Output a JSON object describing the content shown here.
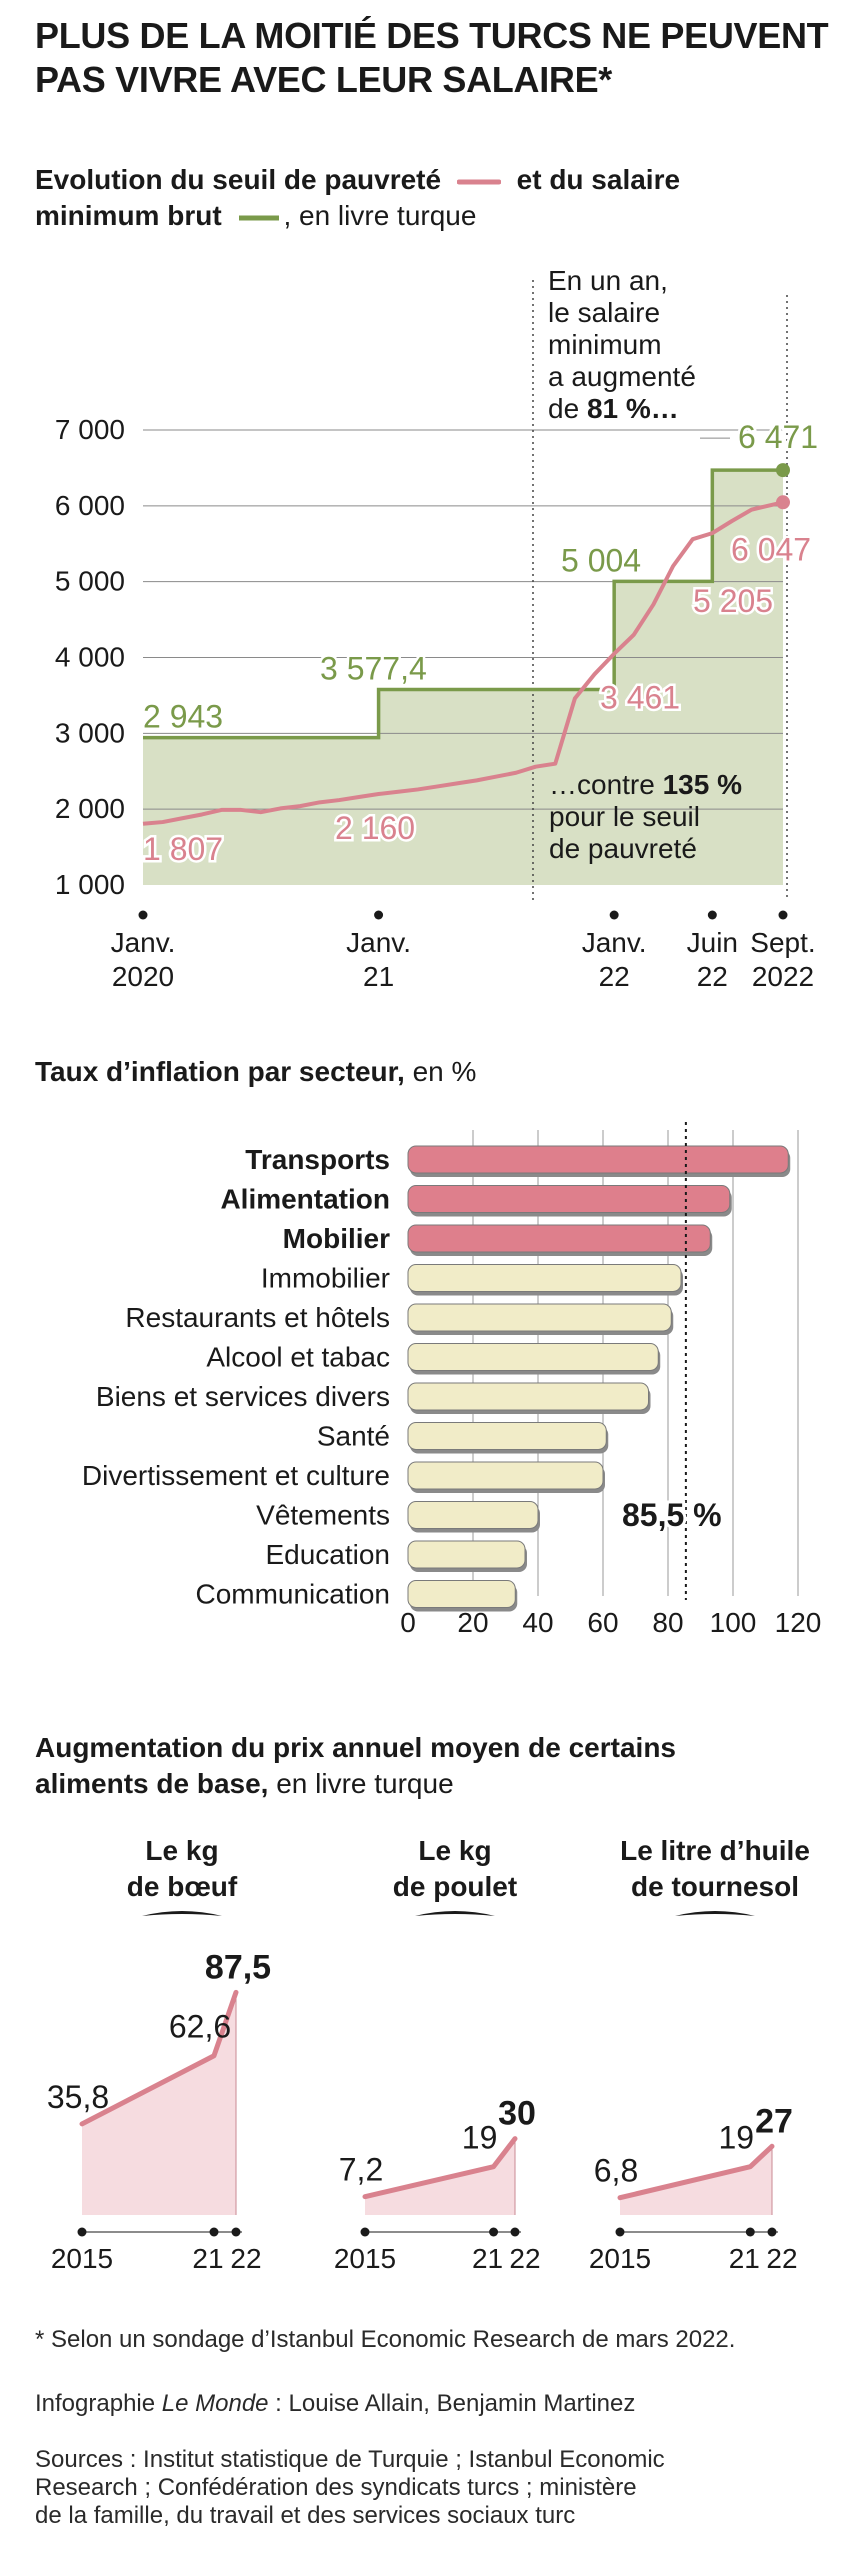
{
  "title_line1": "PLUS DE LA MOITIÉ DES TURCS NE PEUVENT",
  "title_line2": "PAS VIVRE AVEC LEUR SALAIRE*",
  "colors": {
    "green": "#7a9a4a",
    "green_fill": "#d8e0c5",
    "pink": "#d9828e",
    "pink_bar": "#de7f8c",
    "cream_bar": "#f1ecc8",
    "pink_fill": "#f6dce0"
  },
  "chart_data": [
    {
      "type": "line",
      "subtitle_bold_a": "Evolution du seuil de pauvreté",
      "subtitle_bold_b": "et du salaire",
      "subtitle_bold_c": "minimum brut",
      "subtitle_rest": ", en livre turque",
      "ylim": [
        1000,
        7000
      ],
      "yticks": [
        1000,
        2000,
        3000,
        4000,
        5000,
        6000,
        7000
      ],
      "ytick_labels": [
        "1 000",
        "2 000",
        "3 000",
        "4 000",
        "5 000",
        "6 000",
        "7 000"
      ],
      "xlim": [
        0,
        33
      ],
      "xticks": [
        {
          "t": 0,
          "line1": "Janv.",
          "line2": "2020"
        },
        {
          "t": 12,
          "line1": "Janv.",
          "line2": "21"
        },
        {
          "t": 24,
          "line1": "Janv.",
          "line2": "22"
        },
        {
          "t": 29,
          "line1": "Juin",
          "line2": "22"
        },
        {
          "t": 32.6,
          "line1": "Sept.",
          "line2": "2022"
        }
      ],
      "series": [
        {
          "name": "Salaire minimum brut",
          "color": "#7a9a4a",
          "step": true,
          "points": [
            [
              0,
              2943
            ],
            [
              12,
              2943
            ],
            [
              12,
              3577.4
            ],
            [
              24,
              3577.4
            ],
            [
              24,
              5004
            ],
            [
              29,
              5004
            ],
            [
              29,
              6471
            ],
            [
              32.6,
              6471
            ]
          ]
        },
        {
          "name": "Seuil de pauvreté",
          "color": "#d9828e",
          "points": [
            [
              0,
              1807
            ],
            [
              1,
              1830
            ],
            [
              2,
              1880
            ],
            [
              3,
              1930
            ],
            [
              4,
              1990
            ],
            [
              5,
              1990
            ],
            [
              6,
              1960
            ],
            [
              7,
              2010
            ],
            [
              8,
              2040
            ],
            [
              9,
              2090
            ],
            [
              10,
              2120
            ],
            [
              11,
              2160
            ],
            [
              12,
              2200
            ],
            [
              13,
              2230
            ],
            [
              14,
              2260
            ],
            [
              15,
              2300
            ],
            [
              16,
              2340
            ],
            [
              17,
              2380
            ],
            [
              18,
              2430
            ],
            [
              19,
              2480
            ],
            [
              20,
              2560
            ],
            [
              21,
              2600
            ],
            [
              22,
              3461
            ],
            [
              23,
              3780
            ],
            [
              24,
              4050
            ],
            [
              25,
              4300
            ],
            [
              26,
              4700
            ],
            [
              27,
              5205
            ],
            [
              28,
              5560
            ],
            [
              29,
              5640
            ],
            [
              30,
              5800
            ],
            [
              31,
              5950
            ],
            [
              32.6,
              6047
            ]
          ]
        }
      ],
      "value_labels": [
        {
          "text": "2 943",
          "series": "green"
        },
        {
          "text": "3 577,4",
          "series": "green"
        },
        {
          "text": "5 004",
          "series": "green"
        },
        {
          "text": "6 471",
          "series": "green"
        },
        {
          "text": "1 807",
          "series": "pink"
        },
        {
          "text": "2 160",
          "series": "pink"
        },
        {
          "text": "3 461",
          "series": "pink"
        },
        {
          "text": "5 205",
          "series": "pink"
        },
        {
          "text": "6 047",
          "series": "pink"
        }
      ],
      "annotation_top": [
        "En un an,",
        "le salaire",
        "minimum",
        "a augmenté",
        "de ",
        "81 %…"
      ],
      "annotation_bottom": [
        "…contre ",
        "135 %",
        "pour le seuil",
        "de pauvreté"
      ]
    },
    {
      "type": "bar",
      "subtitle_bold": "Taux d’inflation par secteur,",
      "subtitle_rest": " en %",
      "categories": [
        "Transports",
        "Alimentation",
        "Mobilier",
        "Immobilier",
        "Restaurants et hôtels",
        "Alcool et tabac",
        "Biens et services divers",
        "Santé",
        "Divertissement et culture",
        "Vêtements",
        "Education",
        "Communication"
      ],
      "values": [
        117,
        99,
        93,
        84,
        81,
        77,
        74,
        61,
        60,
        40,
        36,
        33
      ],
      "highlight": [
        true,
        true,
        true,
        false,
        false,
        false,
        false,
        false,
        false,
        false,
        false,
        false
      ],
      "xlim": [
        0,
        120
      ],
      "xticks": [
        0,
        20,
        40,
        60,
        80,
        100,
        120
      ],
      "reference_value": 85.5,
      "reference_label": "85,5 %"
    },
    {
      "type": "area",
      "subtitle_bold_a": "Augmentation du prix annuel moyen de certains",
      "subtitle_bold_b": "aliments de base,",
      "subtitle_rest": " en livre turque",
      "shared_ylim": [
        0,
        90
      ],
      "panels": [
        {
          "title1": "Le kg",
          "title2": "de bœuf",
          "years": [
            2015,
            2021,
            2022
          ],
          "values": [
            35.8,
            62.6,
            87.5
          ],
          "labels": [
            "35,8",
            "62,6",
            "87,5"
          ],
          "tick_labels": [
            "2015",
            "21",
            "22"
          ]
        },
        {
          "title1": "Le kg",
          "title2": "de poulet",
          "years": [
            2015,
            2021,
            2022
          ],
          "values": [
            7.2,
            19,
            30
          ],
          "labels": [
            "7,2",
            "19",
            "30"
          ],
          "tick_labels": [
            "2015",
            "21",
            "22"
          ]
        },
        {
          "title1": "Le litre d’huile",
          "title2": "de tournesol",
          "years": [
            2015,
            2021,
            2022
          ],
          "values": [
            6.8,
            19,
            27
          ],
          "labels": [
            "6,8",
            "19",
            "27"
          ],
          "tick_labels": [
            "2015",
            "21",
            "22"
          ]
        }
      ]
    }
  ],
  "footnote": "* Selon un sondage d’Istanbul Economic Research de mars 2022.",
  "credit_prefix": "Infographie ",
  "credit_italic": "Le Monde",
  "credit_rest": " : Louise Allain, Benjamin Martinez",
  "sources_line1": "Sources : Institut statistique de Turquie ; Istanbul Economic",
  "sources_line2": "Research ; Confédération des syndicats turcs ; ministère",
  "sources_line3": "de la famille, du travail et des services sociaux turc"
}
